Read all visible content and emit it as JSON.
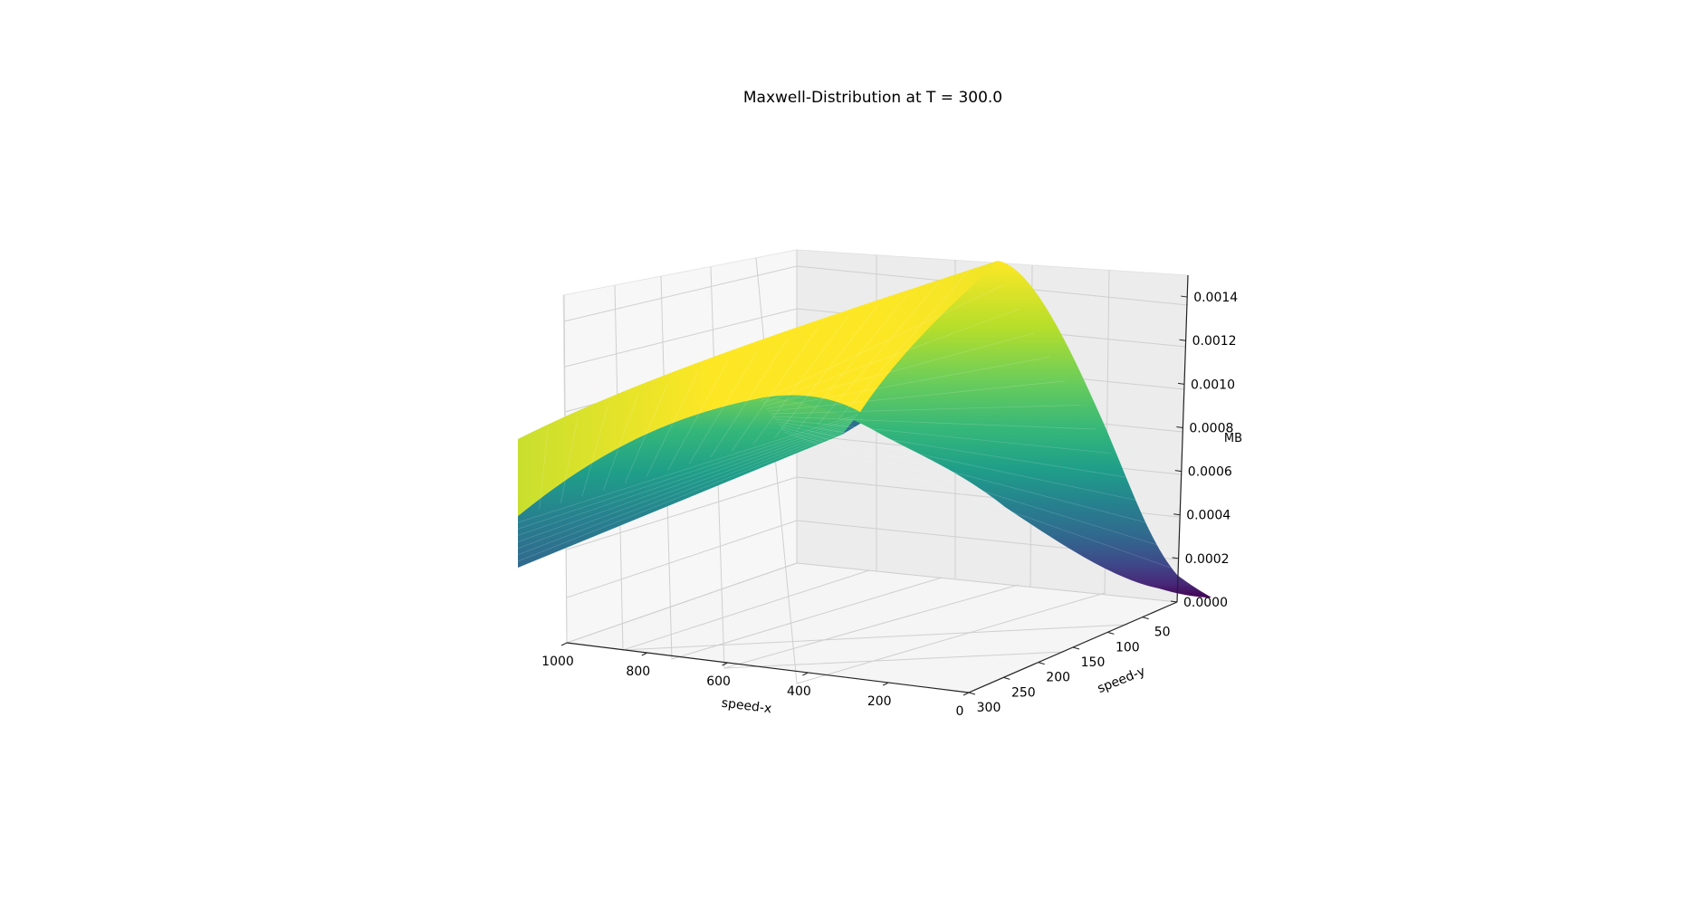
{
  "chart_data": {
    "type": "surface3d",
    "title": "Maxwell-Distribution at T = 300.0",
    "xlabel": "speed-x",
    "ylabel": "speed-y",
    "zlabel": "MB",
    "xlim": [
      0,
      1000
    ],
    "ylim": [
      0,
      300
    ],
    "zlim": [
      0,
      0.0015
    ],
    "x_ticks": [
      0,
      200,
      400,
      600,
      800,
      1000
    ],
    "x_tick_labels": [
      "0",
      "200",
      "400",
      "600",
      "800",
      "1000"
    ],
    "y_ticks": [
      50,
      100,
      150,
      200,
      250,
      300
    ],
    "y_tick_labels": [
      "50",
      "100",
      "150",
      "200",
      "250",
      "300"
    ],
    "z_ticks": [
      0,
      0.0002,
      0.0004,
      0.0006,
      0.0008,
      0.001,
      0.0012,
      0.0014
    ],
    "z_tick_labels": [
      "0.0000",
      "0.0002",
      "0.0004",
      "0.0006",
      "0.0008",
      "0.0010",
      "0.0012",
      "0.0014"
    ],
    "colormap": "viridis",
    "colormap_stops": [
      "#440154",
      "#482878",
      "#3e4989",
      "#31688e",
      "#26828e",
      "#1f9e89",
      "#35b779",
      "#6ece58",
      "#b5de2b",
      "#fde725"
    ],
    "pane_color": "#f2f2f2",
    "grid": true,
    "surface_samples": {
      "speed_x": [
        0,
        100,
        200,
        300,
        400,
        500,
        600,
        700,
        800,
        900,
        1000
      ],
      "MB_peak_at_speed_y_0": [
        8e-05,
        0.0004,
        0.0011,
        0.00148,
        0.00145,
        0.0013,
        0.00122,
        0.0012,
        0.00118,
        0.00117,
        0.00116
      ]
    }
  }
}
